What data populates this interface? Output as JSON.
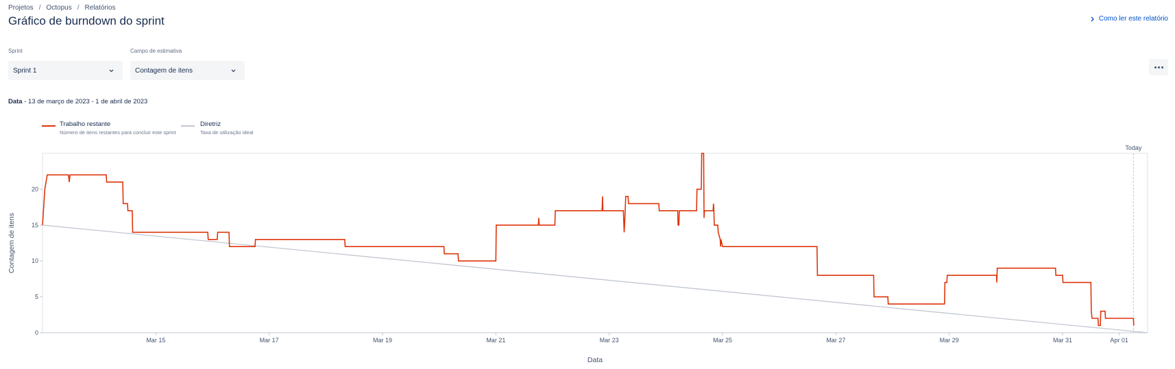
{
  "breadcrumb": {
    "items": [
      "Projetos",
      "Octopus",
      "Relatórios"
    ],
    "separator": "/"
  },
  "page": {
    "title": "Gráfico de burndown do sprint",
    "help_link": "Como ler este relatório"
  },
  "filters": {
    "sprint": {
      "label": "Sprint",
      "value": "Sprint 1"
    },
    "estimate": {
      "label": "Campo de estimativa",
      "value": "Contagem de itens"
    }
  },
  "date_range": {
    "label": "Data",
    "value": "- 13 de março de 2023 - 1 de abril de 2023"
  },
  "legend": [
    {
      "title": "Trabalho restante",
      "description": "Número de itens restantes para concluir este sprint",
      "color": "#de350b"
    },
    {
      "title": "Diretriz",
      "description": "Taxa de utilização ideal",
      "color": "#c1c7d0"
    }
  ],
  "chart_data": {
    "type": "line",
    "xlabel": "Data",
    "ylabel": "Contagem de itens",
    "x_range": [
      "2023-03-13",
      "2023-04-01T12:00"
    ],
    "ylim": [
      0,
      25
    ],
    "y_ticks": [
      0,
      5,
      10,
      15,
      20
    ],
    "x_ticks": [
      {
        "date": "2023-03-15",
        "label": "Mar 15"
      },
      {
        "date": "2023-03-17",
        "label": "Mar 17"
      },
      {
        "date": "2023-03-19",
        "label": "Mar 19"
      },
      {
        "date": "2023-03-21",
        "label": "Mar 21"
      },
      {
        "date": "2023-03-23",
        "label": "Mar 23"
      },
      {
        "date": "2023-03-25",
        "label": "Mar 25"
      },
      {
        "date": "2023-03-27",
        "label": "Mar 27"
      },
      {
        "date": "2023-03-29",
        "label": "Mar 29"
      },
      {
        "date": "2023-03-31",
        "label": "Mar 31"
      },
      {
        "date": "2023-04-01",
        "label": "Apr 01"
      }
    ],
    "today": {
      "label": "Today",
      "date": "2023-04-01T06:00"
    },
    "series": [
      {
        "name": "Trabalho restante",
        "color": "#de350b",
        "points": [
          [
            "2023-03-13T00:00",
            15
          ],
          [
            "2023-03-13T01:00",
            20
          ],
          [
            "2023-03-13T02:00",
            22
          ],
          [
            "2023-03-13T11:00",
            22
          ],
          [
            "2023-03-13T11:20",
            21
          ],
          [
            "2023-03-13T11:40",
            22
          ],
          [
            "2023-03-14T03:00",
            22
          ],
          [
            "2023-03-14T03:10",
            21
          ],
          [
            "2023-03-14T10:00",
            21
          ],
          [
            "2023-03-14T10:10",
            18
          ],
          [
            "2023-03-14T12:00",
            18
          ],
          [
            "2023-03-14T12:10",
            17
          ],
          [
            "2023-03-14T14:00",
            17
          ],
          [
            "2023-03-14T14:10",
            14
          ],
          [
            "2023-03-15T22:00",
            14
          ],
          [
            "2023-03-15T22:10",
            13
          ],
          [
            "2023-03-16T02:00",
            13
          ],
          [
            "2023-03-16T02:10",
            14
          ],
          [
            "2023-03-16T07:00",
            14
          ],
          [
            "2023-03-16T07:10",
            12
          ],
          [
            "2023-03-16T18:00",
            12
          ],
          [
            "2023-03-16T18:10",
            13
          ],
          [
            "2023-03-18T08:00",
            13
          ],
          [
            "2023-03-18T08:10",
            12
          ],
          [
            "2023-03-20T02:00",
            12
          ],
          [
            "2023-03-20T02:10",
            11
          ],
          [
            "2023-03-20T08:00",
            11
          ],
          [
            "2023-03-20T08:10",
            10
          ],
          [
            "2023-03-21T00:00",
            10
          ],
          [
            "2023-03-21T00:10",
            15
          ],
          [
            "2023-03-21T18:00",
            15
          ],
          [
            "2023-03-21T18:10",
            16
          ],
          [
            "2023-03-21T18:20",
            15
          ],
          [
            "2023-03-22T01:00",
            15
          ],
          [
            "2023-03-22T01:10",
            17
          ],
          [
            "2023-03-22T21:00",
            17
          ],
          [
            "2023-03-22T21:10",
            19
          ],
          [
            "2023-03-22T21:20",
            17
          ],
          [
            "2023-03-23T06:00",
            17
          ],
          [
            "2023-03-23T06:20",
            14
          ],
          [
            "2023-03-23T06:30",
            15
          ],
          [
            "2023-03-23T07:00",
            19
          ],
          [
            "2023-03-23T08:00",
            19
          ],
          [
            "2023-03-23T08:10",
            18
          ],
          [
            "2023-03-23T21:00",
            18
          ],
          [
            "2023-03-23T21:10",
            17
          ],
          [
            "2023-03-24T05:00",
            17
          ],
          [
            "2023-03-24T05:10",
            15
          ],
          [
            "2023-03-24T05:30",
            15
          ],
          [
            "2023-03-24T05:40",
            17
          ],
          [
            "2023-03-24T13:00",
            17
          ],
          [
            "2023-03-24T13:10",
            20
          ],
          [
            "2023-03-24T15:00",
            20
          ],
          [
            "2023-03-24T15:10",
            25
          ],
          [
            "2023-03-24T16:00",
            25
          ],
          [
            "2023-03-24T16:10",
            16
          ],
          [
            "2023-03-24T16:20",
            17
          ],
          [
            "2023-03-24T20:00",
            17
          ],
          [
            "2023-03-24T20:10",
            18
          ],
          [
            "2023-03-24T20:20",
            17
          ],
          [
            "2023-03-24T20:30",
            15
          ],
          [
            "2023-03-24T22:00",
            15
          ],
          [
            "2023-03-24T22:10",
            14
          ],
          [
            "2023-03-24T23:00",
            13
          ],
          [
            "2023-03-24T23:10",
            12
          ],
          [
            "2023-03-24T23:20",
            13
          ],
          [
            "2023-03-25T00:00",
            12
          ],
          [
            "2023-03-26T16:00",
            12
          ],
          [
            "2023-03-26T16:10",
            8
          ],
          [
            "2023-03-27T16:00",
            8
          ],
          [
            "2023-03-27T16:10",
            5
          ],
          [
            "2023-03-27T22:00",
            5
          ],
          [
            "2023-03-27T22:10",
            4
          ],
          [
            "2023-03-28T22:00",
            4
          ],
          [
            "2023-03-28T22:10",
            7
          ],
          [
            "2023-03-28T23:00",
            7
          ],
          [
            "2023-03-28T23:10",
            8
          ],
          [
            "2023-03-29T20:00",
            8
          ],
          [
            "2023-03-29T20:10",
            7
          ],
          [
            "2023-03-29T20:20",
            9
          ],
          [
            "2023-03-30T21:00",
            9
          ],
          [
            "2023-03-30T21:10",
            8
          ],
          [
            "2023-03-31T00:00",
            8
          ],
          [
            "2023-03-31T00:10",
            7
          ],
          [
            "2023-03-31T12:00",
            7
          ],
          [
            "2023-03-31T12:10",
            3
          ],
          [
            "2023-03-31T12:30",
            2
          ],
          [
            "2023-03-31T15:00",
            2
          ],
          [
            "2023-03-31T15:10",
            1
          ],
          [
            "2023-03-31T16:00",
            1
          ],
          [
            "2023-03-31T16:10",
            3
          ],
          [
            "2023-03-31T18:00",
            3
          ],
          [
            "2023-03-31T18:10",
            2
          ],
          [
            "2023-04-01T06:00",
            2
          ],
          [
            "2023-04-01T06:10",
            1
          ]
        ]
      },
      {
        "name": "Diretriz",
        "color": "#c1c7d0",
        "points": [
          [
            "2023-03-13T00:00",
            15
          ],
          [
            "2023-04-01T12:00",
            0
          ]
        ]
      }
    ]
  }
}
